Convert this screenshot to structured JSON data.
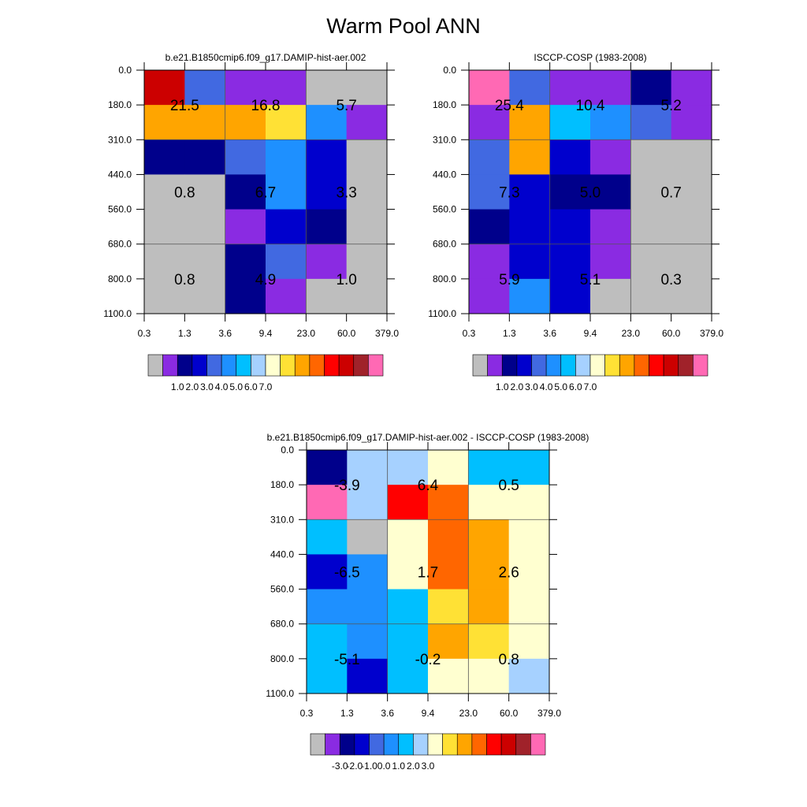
{
  "title": "Warm Pool ANN",
  "colors": {
    "gray": "#bebebe",
    "seq_palette": [
      "#bebebe",
      "#8a2be2",
      "#00008b",
      "#0000cd",
      "#4169e1",
      "#1e90ff",
      "#00bfff",
      "#a6d1ff",
      "#ffffd0",
      "#ffe135",
      "#ffa500",
      "#ff6600",
      "#ff0000",
      "#cc0000",
      "#a0222a",
      "#ff69b4"
    ],
    "diff_palette": [
      "#bebebe",
      "#8a2be2",
      "#00008b",
      "#0000cd",
      "#4169e1",
      "#1e90ff",
      "#00bfff",
      "#a6d1ff",
      "#ffffd0",
      "#ffe135",
      "#ffa500",
      "#ff6600",
      "#ff0000",
      "#cc0000",
      "#a0222a",
      "#ff69b4"
    ]
  },
  "chart_data": [
    {
      "type": "heatmap",
      "title": "b.e21.B1850cmip6.f09_g17.DAMIP-hist-aer.002",
      "x_ticks": [
        "0.3",
        "1.3",
        "3.6",
        "9.4",
        "23.0",
        "60.0",
        "379.0"
      ],
      "y_ticks": [
        "0.0",
        "180.0",
        "310.0",
        "440.0",
        "560.0",
        "680.0",
        "800.0",
        "1100.0"
      ],
      "cell_colors": [
        [
          "#cc0000",
          "#4169e1",
          "#8a2be2",
          "#8a2be2",
          "#bebebe",
          "#bebebe"
        ],
        [
          "#ffa500",
          "#ffa500",
          "#ffa500",
          "#ffe135",
          "#1e90ff",
          "#8a2be2"
        ],
        [
          "#00008b",
          "#00008b",
          "#4169e1",
          "#1e90ff",
          "#0000cd",
          "#bebebe"
        ],
        [
          "#bebebe",
          "#bebebe",
          "#00008b",
          "#1e90ff",
          "#0000cd",
          "#bebebe"
        ],
        [
          "#bebebe",
          "#bebebe",
          "#8a2be2",
          "#0000cd",
          "#00008b",
          "#bebebe"
        ],
        [
          "#bebebe",
          "#bebebe",
          "#00008b",
          "#4169e1",
          "#8a2be2",
          "#bebebe"
        ],
        [
          "#bebebe",
          "#bebebe",
          "#00008b",
          "#8a2be2",
          "#bebebe",
          "#bebebe"
        ]
      ],
      "block_labels": [
        [
          "21.5",
          "16.8",
          "5.7"
        ],
        [
          "0.8",
          "6.7",
          "3.3"
        ],
        [
          "0.8",
          "4.9",
          "1.0"
        ]
      ],
      "colorbar": {
        "labels": [
          "1.0",
          "2.0",
          "3.0",
          "4.0",
          "5.0",
          "6.0",
          "7.0"
        ]
      }
    },
    {
      "type": "heatmap",
      "title": "ISCCP-COSP (1983-2008)",
      "x_ticks": [
        "0.3",
        "1.3",
        "3.6",
        "9.4",
        "23.0",
        "60.0",
        "379.0"
      ],
      "y_ticks": [
        "0.0",
        "180.0",
        "310.0",
        "440.0",
        "560.0",
        "680.0",
        "800.0",
        "1100.0"
      ],
      "cell_colors": [
        [
          "#ff69b4",
          "#4169e1",
          "#8a2be2",
          "#8a2be2",
          "#00008b",
          "#8a2be2"
        ],
        [
          "#8a2be2",
          "#ffa500",
          "#00bfff",
          "#1e90ff",
          "#4169e1",
          "#8a2be2"
        ],
        [
          "#4169e1",
          "#ffa500",
          "#0000cd",
          "#8a2be2",
          "#bebebe",
          "#bebebe"
        ],
        [
          "#4169e1",
          "#0000cd",
          "#00008b",
          "#00008b",
          "#bebebe",
          "#bebebe"
        ],
        [
          "#00008b",
          "#0000cd",
          "#0000cd",
          "#8a2be2",
          "#bebebe",
          "#bebebe"
        ],
        [
          "#8a2be2",
          "#0000cd",
          "#0000cd",
          "#8a2be2",
          "#bebebe",
          "#bebebe"
        ],
        [
          "#8a2be2",
          "#1e90ff",
          "#0000cd",
          "#bebebe",
          "#bebebe",
          "#bebebe"
        ]
      ],
      "block_labels": [
        [
          "25.4",
          "10.4",
          "5.2"
        ],
        [
          "7.3",
          "5.0",
          "0.7"
        ],
        [
          "5.9",
          "5.1",
          "0.3"
        ]
      ],
      "colorbar": {
        "labels": [
          "1.0",
          "2.0",
          "3.0",
          "4.0",
          "5.0",
          "6.0",
          "7.0"
        ]
      }
    },
    {
      "type": "heatmap",
      "title": "b.e21.B1850cmip6.f09_g17.DAMIP-hist-aer.002 - ISCCP-COSP (1983-2008)",
      "x_ticks": [
        "0.3",
        "1.3",
        "3.6",
        "9.4",
        "23.0",
        "60.0",
        "379.0"
      ],
      "y_ticks": [
        "0.0",
        "180.0",
        "310.0",
        "440.0",
        "560.0",
        "680.0",
        "800.0",
        "1100.0"
      ],
      "cell_colors": [
        [
          "#00008b",
          "#a6d1ff",
          "#a6d1ff",
          "#ffffd0",
          "#00bfff",
          "#00bfff"
        ],
        [
          "#ff69b4",
          "#a6d1ff",
          "#ff0000",
          "#ff6600",
          "#ffffd0",
          "#ffffd0"
        ],
        [
          "#00bfff",
          "#bebebe",
          "#ffffd0",
          "#ff6600",
          "#ffa500",
          "#ffffd0"
        ],
        [
          "#0000cd",
          "#1e90ff",
          "#ffffd0",
          "#ff6600",
          "#ffa500",
          "#ffffd0"
        ],
        [
          "#1e90ff",
          "#1e90ff",
          "#00bfff",
          "#ffe135",
          "#ffa500",
          "#ffffd0"
        ],
        [
          "#00bfff",
          "#1e90ff",
          "#00bfff",
          "#ffa500",
          "#ffe135",
          "#ffffd0"
        ],
        [
          "#00bfff",
          "#0000cd",
          "#00bfff",
          "#ffffd0",
          "#ffffd0",
          "#a6d1ff"
        ]
      ],
      "block_labels": [
        [
          "-3.9",
          "6.4",
          "0.5"
        ],
        [
          "-6.5",
          "1.7",
          "2.6"
        ],
        [
          "-5.1",
          "-0.2",
          "0.8"
        ]
      ],
      "colorbar": {
        "labels": [
          "-3.0",
          "-2.0",
          "-1.0",
          "0.0",
          "1.0",
          "2.0",
          "3.0"
        ]
      }
    }
  ]
}
